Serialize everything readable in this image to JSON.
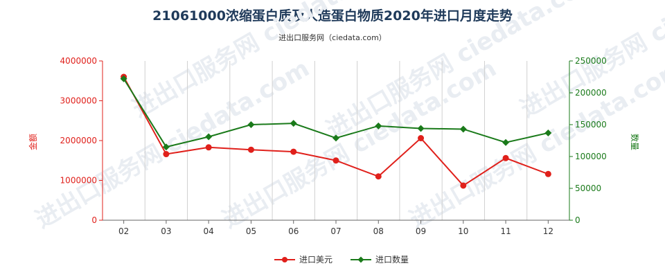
{
  "chart_data": {
    "type": "line",
    "title": "21061000浓缩蛋白质及人造蛋白物质2020年进口月度走势",
    "subtitle": "进出口服务网（ciedata.com）",
    "watermark": "进出口服务网 ciedata.com",
    "x": [
      "02",
      "03",
      "04",
      "05",
      "06",
      "07",
      "08",
      "09",
      "10",
      "11",
      "12"
    ],
    "y_left": {
      "label": "金额",
      "lim": [
        0,
        4000000
      ],
      "ticks": [
        "0",
        "1000000",
        "2000000",
        "3000000",
        "4000000"
      ],
      "color": "#e0201b"
    },
    "y_right": {
      "label": "数量",
      "lim": [
        0,
        250000
      ],
      "ticks": [
        "0",
        "50000",
        "100000",
        "150000",
        "200000",
        "250000"
      ],
      "color": "#1a7a1a"
    },
    "series": [
      {
        "name": "进口美元",
        "axis": "left",
        "color": "#e0201b",
        "values": [
          3600000,
          1660000,
          1830000,
          1770000,
          1720000,
          1500000,
          1100000,
          2060000,
          870000,
          1560000,
          1160000
        ]
      },
      {
        "name": "进口数量",
        "axis": "right",
        "color": "#1a7a1a",
        "values": [
          222000,
          115000,
          131000,
          150000,
          152000,
          129000,
          148000,
          144000,
          143000,
          122000,
          137000
        ]
      }
    ],
    "grid": "vertical",
    "legend_position": "bottom-center"
  }
}
